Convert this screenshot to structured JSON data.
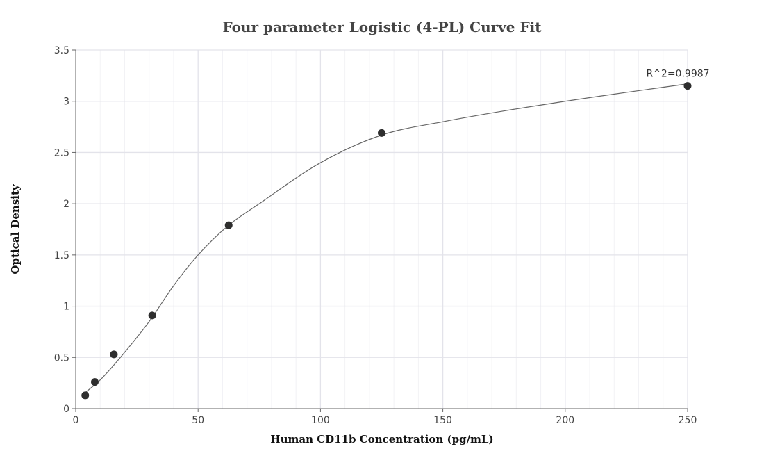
{
  "chart_data": {
    "type": "scatter",
    "title": "Four parameter Logistic (4-PL) Curve Fit",
    "xlabel": "Human CD11b Concentration (pg/mL)",
    "ylabel": "Optical Density",
    "xlim": [
      0,
      250
    ],
    "ylim": [
      0,
      3.5
    ],
    "x_ticks": [
      0,
      50,
      100,
      150,
      200,
      250
    ],
    "x_tick_labels": [
      "0",
      "50",
      "100",
      "150",
      "200",
      "250"
    ],
    "y_ticks": [
      0,
      0.5,
      1,
      1.5,
      2,
      2.5,
      3,
      3.5
    ],
    "y_tick_labels": [
      "0",
      "0.5",
      "1",
      "1.5",
      "2",
      "2.5",
      "3",
      "3.5"
    ],
    "grid": true,
    "series": [
      {
        "type": "scatter",
        "x": [
          3.9,
          7.8,
          15.6,
          31.25,
          62.5,
          125,
          250
        ],
        "y": [
          0.13,
          0.26,
          0.53,
          0.91,
          1.79,
          2.69,
          3.15
        ]
      }
    ],
    "fit_curve": {
      "model": "4PL",
      "x": [
        3,
        10,
        20,
        30,
        40,
        50,
        62.5,
        75,
        100,
        125,
        150,
        200,
        250
      ],
      "y": [
        0.14,
        0.28,
        0.55,
        0.85,
        1.2,
        1.5,
        1.79,
        2.0,
        2.4,
        2.67,
        2.8,
        3.0,
        3.17
      ]
    },
    "annotations": [
      {
        "text": "R^2=0.9987",
        "x": 250,
        "y": 3.15
      }
    ],
    "colors": {
      "points": "#2e2e2e",
      "curve": "#666666",
      "grid": "#e3e3ea"
    }
  }
}
